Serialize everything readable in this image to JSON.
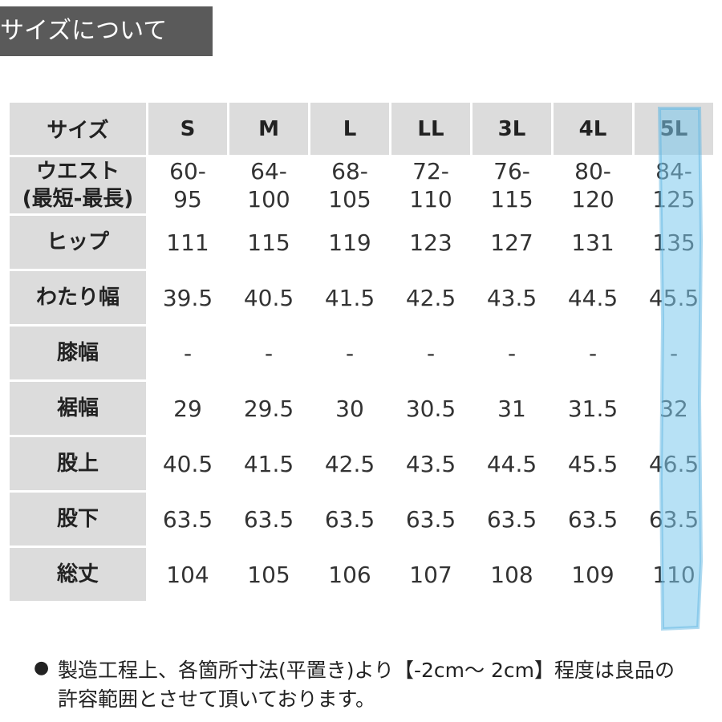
{
  "header": {
    "title": "サイズについて"
  },
  "table": {
    "columns": [
      "サイズ",
      "S",
      "M",
      "L",
      "LL",
      "3L",
      "4L",
      "5L"
    ],
    "rows": [
      [
        "ウエスト\n(最短-最長)",
        "60-\n95",
        "64-\n100",
        "68-\n105",
        "72-\n110",
        "76-\n115",
        "80-\n120",
        "84-\n125"
      ],
      [
        "ヒップ",
        "111",
        "115",
        "119",
        "123",
        "127",
        "131",
        "135"
      ],
      [
        "わたり幅",
        "39.5",
        "40.5",
        "41.5",
        "42.5",
        "43.5",
        "44.5",
        "45.5"
      ],
      [
        "膝幅",
        "-",
        "-",
        "-",
        "-",
        "-",
        "-",
        "-"
      ],
      [
        "裾幅",
        "29",
        "29.5",
        "30",
        "30.5",
        "31",
        "31.5",
        "32"
      ],
      [
        "股上",
        "40.5",
        "41.5",
        "42.5",
        "43.5",
        "44.5",
        "45.5",
        "46.5"
      ],
      [
        "股下",
        "63.5",
        "63.5",
        "63.5",
        "63.5",
        "63.5",
        "63.5",
        "63.5"
      ],
      [
        "総丈",
        "104",
        "105",
        "106",
        "107",
        "108",
        "109",
        "110"
      ]
    ]
  },
  "note": "製造工程上、各箇所寸法(平置き)より【-2cm～ 2cm】程度は良品の許容範囲とさせて頂いております。"
}
